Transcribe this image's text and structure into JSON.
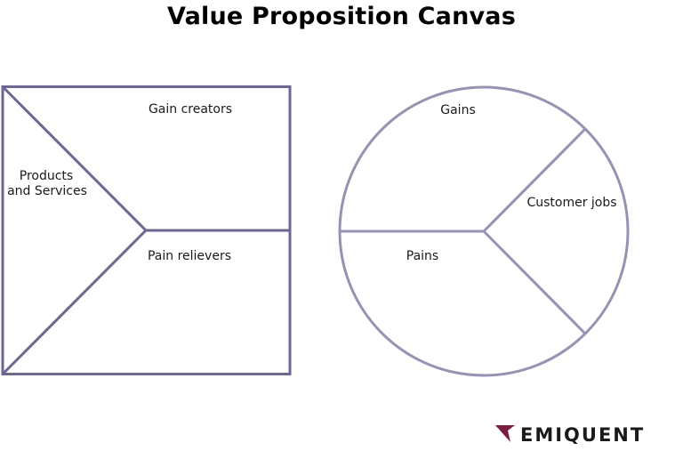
{
  "title": "Value Proposition Canvas",
  "colors": {
    "square_stroke": "#6f6597",
    "circle_stroke": "#9891b6",
    "logo_arrow": "#7a1d3e",
    "text": "#1a1a1a"
  },
  "value_map": {
    "gain_creators": "Gain creators",
    "products_and_services_line1": "Products",
    "products_and_services_line2": "and Services",
    "pain_relievers": "Pain relievers"
  },
  "customer_profile": {
    "gains": "Gains",
    "customer_jobs": "Customer jobs",
    "pains": "Pains"
  },
  "brand": {
    "name": "EMIQUENT",
    "icon": "arrowhead-icon"
  }
}
